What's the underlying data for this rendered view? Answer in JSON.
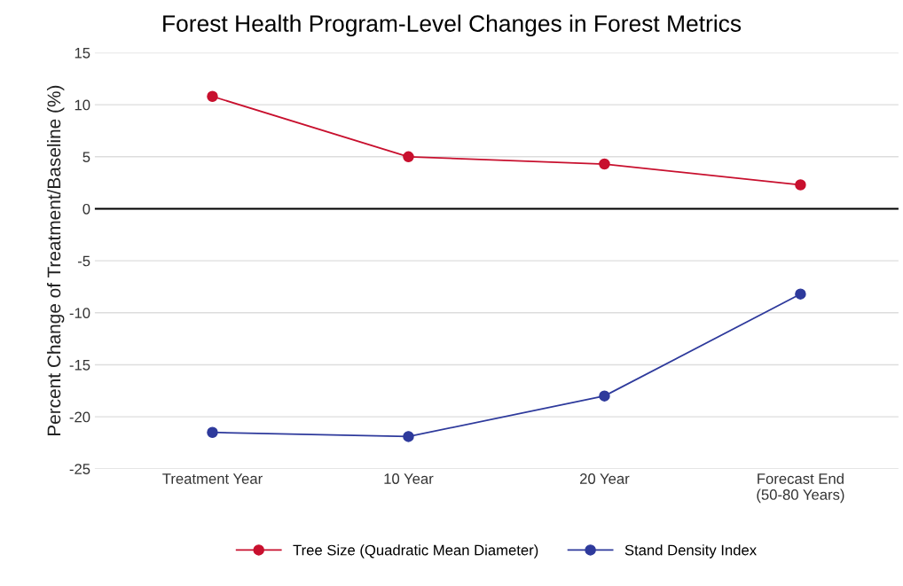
{
  "chart_data": {
    "type": "line",
    "title": "Forest Health Program-Level Changes in Forest Metrics",
    "ylabel": "Percent Change of Treatment/Baseline (%)",
    "categories": [
      "Treatment Year",
      "10 Year",
      "20 Year",
      "Forecast End\n(50-80 Years)"
    ],
    "series": [
      {
        "name": "Tree Size (Quadratic Mean Diameter)",
        "color": "#c8102e",
        "values": [
          10.8,
          5.0,
          4.3,
          2.3
        ]
      },
      {
        "name": "Stand Density Index",
        "color": "#2e3a9c",
        "values": [
          -21.5,
          -21.9,
          -18.0,
          -8.2
        ]
      }
    ],
    "ylim": [
      -25,
      15
    ],
    "yticks": [
      -25,
      -20,
      -15,
      -10,
      -5,
      0,
      5,
      10,
      15
    ],
    "ref_lines": [
      {
        "axis": "y",
        "value": 0,
        "color": "#000000"
      }
    ],
    "grid": "y",
    "legend": "bottom",
    "marker": "circle",
    "line_style": "solid"
  }
}
